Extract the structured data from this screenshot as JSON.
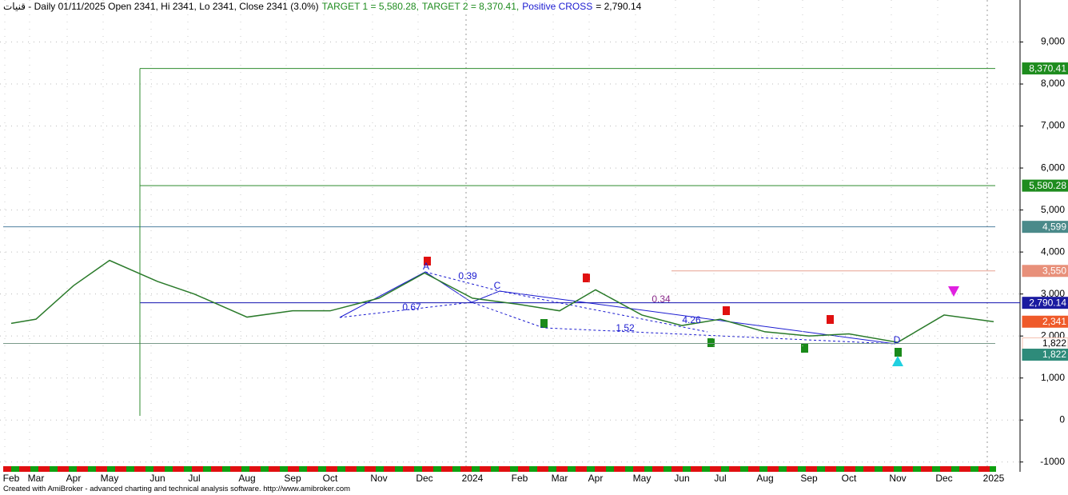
{
  "chart_data": {
    "type": "line",
    "title": "قنيات - Daily 01/11/2025 Open 2341, Hi 2341, Lo 2341, Close 2341 (3.0%)",
    "title_parts": [
      {
        "text": "TARGET 1 = 5,580.28,",
        "color": "#1e8c1e"
      },
      {
        "text": "TARGET 2 = 8,370.41,",
        "color": "#1e8c1e"
      },
      {
        "text": "Positive CROSS",
        "color": "#1a1ad0"
      },
      {
        "text": "= 2,790.14",
        "color": "#000000"
      }
    ],
    "categories": [
      "Feb",
      "Mar",
      "Apr",
      "May",
      "Jun",
      "Jul",
      "Aug",
      "Sep",
      "Oct",
      "Nov",
      "Dec",
      "2024",
      "Feb",
      "Mar",
      "Apr",
      "May",
      "Jun",
      "Jul",
      "Aug",
      "Sep",
      "Oct",
      "Nov",
      "Dec",
      "2025"
    ],
    "series": [
      {
        "color": "#2a7a2a",
        "values": [
          2300,
          2400,
          3200,
          3800,
          3300,
          3000,
          2450,
          2600,
          2600,
          2900,
          3500,
          2900,
          2750,
          2600,
          3100,
          2500,
          2250,
          2400,
          2100,
          2000,
          2050,
          1850,
          2500,
          2341
        ]
      }
    ],
    "levels": [
      {
        "value": 8370.41,
        "label": "8,370.41",
        "color": "#1e8c1e",
        "line": "#2e8b2e"
      },
      {
        "value": 5580.28,
        "label": "5,580.28",
        "color": "#1e8c1e",
        "line": "#2e8b2e"
      },
      {
        "value": 4599,
        "label": "4,599",
        "color": "#4a8a8a",
        "line": "#5080a0"
      },
      {
        "value": 3550,
        "label": "3,550",
        "color": "#e8907a",
        "line": "#e8a090"
      },
      {
        "value": 2790.14,
        "label": "2,790.14",
        "color": "#1a1aa0",
        "line": "#1010b0"
      },
      {
        "value": 2341,
        "label": "2,341",
        "color": "#ef5a2a",
        "line": null
      },
      {
        "value": 1822,
        "label": "1,822",
        "color": "#f4c0b0",
        "line": "#7a9a8a"
      },
      {
        "value": 1822,
        "label": "1,822",
        "color": "#2e8b7a",
        "line": null
      }
    ],
    "annotations": [
      {
        "text": "A",
        "color": "#1a1ad0"
      },
      {
        "text": "0.39",
        "color": "#1a1ad0"
      },
      {
        "text": "C",
        "color": "#1a1ad0"
      },
      {
        "text": "0.67",
        "color": "#1a1ad0"
      },
      {
        "text": "1.52",
        "color": "#1a1ad0"
      },
      {
        "text": "0.34",
        "color": "#8a2a8a"
      },
      {
        "text": "4.26",
        "color": "#1a1ad0"
      },
      {
        "text": "D",
        "color": "#1a1ad0"
      }
    ],
    "ylim": [
      -1100,
      10000
    ],
    "yticks": [
      -1000,
      0,
      {
        "value": 1000,
        "label": "1,000"
      },
      {
        "value": 2000,
        "label": "2,000"
      },
      {
        "value": 3000,
        "label": "3,000"
      },
      {
        "value": 4000,
        "label": "4,000"
      },
      {
        "value": 5000,
        "label": "5,000"
      },
      {
        "value": 6000,
        "label": "6,000"
      },
      {
        "value": 7000,
        "label": "7,000"
      },
      {
        "value": 8000,
        "label": "8,000"
      },
      {
        "value": 9000,
        "label": "9,000"
      }
    ],
    "grid": true,
    "footer": "Created with AmiBroker - advanced charting and technical analysis software. http://www.amibroker.com"
  }
}
